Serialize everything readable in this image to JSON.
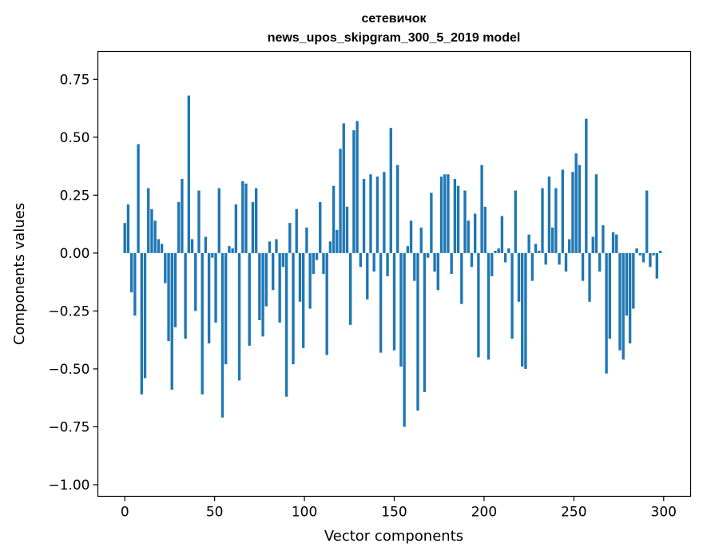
{
  "chart_data": {
    "type": "bar",
    "title_line1": "сетевичок",
    "title_line2": "news_upos_skipgram_300_5_2019 model",
    "xlabel": "Vector components",
    "ylabel": "Components values",
    "xlim": [
      -15,
      315
    ],
    "ylim": [
      -1.05,
      0.87
    ],
    "xticks": [
      0,
      50,
      100,
      150,
      200,
      250,
      300
    ],
    "yticks": [
      0.75,
      0.5,
      0.25,
      0.0,
      -0.25,
      -0.5,
      -0.75,
      -1.0
    ],
    "ytick_labels": [
      "0.75",
      "0.50",
      "0.25",
      "0.00",
      "−0.25",
      "−0.50",
      "−0.75",
      "−1.00"
    ],
    "bar_color": "#1f77b4",
    "values": [
      0.13,
      0.21,
      -0.17,
      -0.27,
      0.47,
      -0.61,
      -0.54,
      0.28,
      0.19,
      0.14,
      0.06,
      0.04,
      -0.13,
      -0.38,
      -0.59,
      -0.32,
      0.22,
      0.32,
      -0.37,
      0.68,
      0.06,
      -0.25,
      0.27,
      -0.61,
      0.07,
      -0.39,
      -0.02,
      -0.3,
      0.28,
      -0.71,
      -0.48,
      0.03,
      0.02,
      0.21,
      -0.55,
      0.31,
      0.3,
      -0.4,
      0.22,
      0.28,
      -0.29,
      -0.36,
      -0.23,
      0.05,
      -0.16,
      0.06,
      -0.3,
      -0.06,
      -0.62,
      0.13,
      -0.48,
      0.19,
      -0.21,
      -0.41,
      0.11,
      -0.24,
      -0.09,
      -0.03,
      0.22,
      -0.09,
      -0.44,
      0.05,
      0.29,
      0.1,
      0.45,
      0.56,
      0.2,
      -0.31,
      0.53,
      0.57,
      -0.06,
      0.32,
      -0.2,
      0.34,
      -0.08,
      0.33,
      -0.43,
      0.35,
      -0.1,
      0.54,
      -0.42,
      0.38,
      -0.49,
      -0.75,
      0.03,
      0.14,
      -0.12,
      -0.68,
      0.11,
      -0.6,
      -0.02,
      0.26,
      -0.08,
      -0.16,
      0.33,
      0.34,
      0.34,
      -0.09,
      0.32,
      0.29,
      -0.22,
      0.27,
      0.14,
      -0.06,
      0.17,
      -0.45,
      0.38,
      0.2,
      -0.46,
      -0.1,
      0.01,
      0.02,
      0.16,
      -0.04,
      0.02,
      -0.37,
      0.27,
      -0.21,
      -0.49,
      -0.5,
      0.08,
      -0.12,
      0.04,
      0.01,
      0.28,
      -0.05,
      0.33,
      0.11,
      0.28,
      -0.05,
      0.36,
      -0.08,
      0.06,
      0.35,
      0.43,
      0.38,
      -0.12,
      0.58,
      -0.21,
      0.07,
      0.34,
      -0.08,
      0.12,
      -0.52,
      -0.37,
      0.09,
      0.08,
      -0.42,
      -0.46,
      -0.27,
      -0.39,
      -0.24,
      0.02,
      -0.01,
      -0.04,
      0.27,
      -0.06,
      -0.01,
      -0.11,
      0.01
    ]
  }
}
